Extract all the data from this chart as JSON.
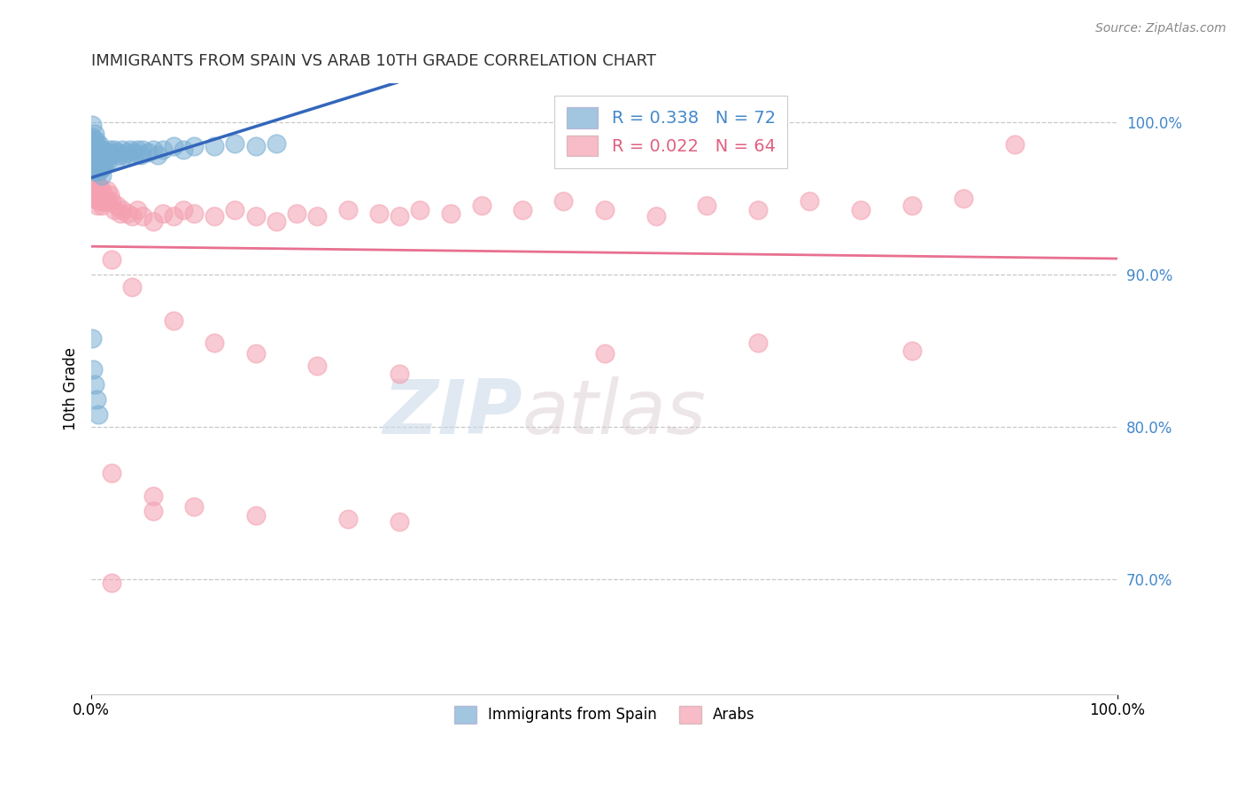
{
  "title": "IMMIGRANTS FROM SPAIN VS ARAB 10TH GRADE CORRELATION CHART",
  "source_text": "Source: ZipAtlas.com",
  "ylabel": "10th Grade",
  "xlim": [
    0.0,
    1.0
  ],
  "ylim": [
    0.625,
    1.025
  ],
  "yticks": [
    0.7,
    0.8,
    0.9,
    1.0
  ],
  "ytick_labels": [
    "70.0%",
    "80.0%",
    "90.0%",
    "100.0%"
  ],
  "xtick_labels": [
    "0.0%",
    "100.0%"
  ],
  "xticks": [
    0.0,
    1.0
  ],
  "r_spain": 0.338,
  "n_spain": 72,
  "r_arab": 0.022,
  "n_arab": 64,
  "blue_color": "#7BAFD4",
  "pink_color": "#F4A0B0",
  "blue_line_color": "#3366BB",
  "pink_line_color": "#E87090",
  "legend_label_spain": "Immigrants from Spain",
  "legend_label_arab": "Arabs",
  "watermark_zip": "ZIP",
  "watermark_atlas": "atlas",
  "background_color": "#FFFFFF",
  "spain_x": [
    0.001,
    0.001,
    0.001,
    0.001,
    0.001,
    0.002,
    0.002,
    0.002,
    0.002,
    0.003,
    0.003,
    0.003,
    0.003,
    0.004,
    0.004,
    0.004,
    0.005,
    0.005,
    0.005,
    0.006,
    0.006,
    0.006,
    0.007,
    0.007,
    0.008,
    0.008,
    0.008,
    0.009,
    0.009,
    0.01,
    0.01,
    0.01,
    0.011,
    0.011,
    0.012,
    0.012,
    0.013,
    0.014,
    0.015,
    0.016,
    0.018,
    0.019,
    0.02,
    0.022,
    0.024,
    0.025,
    0.027,
    0.03,
    0.032,
    0.035,
    0.038,
    0.04,
    0.042,
    0.045,
    0.048,
    0.05,
    0.055,
    0.06,
    0.065,
    0.07,
    0.08,
    0.09,
    0.1,
    0.12,
    0.14,
    0.16,
    0.18,
    0.001,
    0.002,
    0.003,
    0.005,
    0.007
  ],
  "spain_y": [
    0.998,
    0.99,
    0.985,
    0.978,
    0.972,
    0.988,
    0.98,
    0.975,
    0.968,
    0.992,
    0.985,
    0.978,
    0.97,
    0.988,
    0.982,
    0.975,
    0.985,
    0.978,
    0.97,
    0.982,
    0.975,
    0.968,
    0.98,
    0.972,
    0.985,
    0.978,
    0.968,
    0.98,
    0.97,
    0.982,
    0.975,
    0.965,
    0.978,
    0.97,
    0.98,
    0.972,
    0.975,
    0.978,
    0.98,
    0.975,
    0.982,
    0.978,
    0.98,
    0.982,
    0.975,
    0.98,
    0.978,
    0.982,
    0.978,
    0.98,
    0.982,
    0.978,
    0.98,
    0.982,
    0.978,
    0.982,
    0.98,
    0.982,
    0.978,
    0.982,
    0.984,
    0.982,
    0.984,
    0.984,
    0.986,
    0.984,
    0.986,
    0.858,
    0.838,
    0.828,
    0.818,
    0.808
  ],
  "arab_x": [
    0.001,
    0.001,
    0.001,
    0.001,
    0.002,
    0.002,
    0.002,
    0.003,
    0.003,
    0.004,
    0.004,
    0.005,
    0.005,
    0.006,
    0.006,
    0.007,
    0.008,
    0.008,
    0.009,
    0.01,
    0.01,
    0.011,
    0.012,
    0.013,
    0.015,
    0.016,
    0.018,
    0.02,
    0.022,
    0.025,
    0.028,
    0.03,
    0.035,
    0.04,
    0.045,
    0.05,
    0.06,
    0.07,
    0.08,
    0.09,
    0.1,
    0.12,
    0.14,
    0.16,
    0.18,
    0.2,
    0.22,
    0.25,
    0.28,
    0.3,
    0.32,
    0.35,
    0.38,
    0.42,
    0.46,
    0.5,
    0.55,
    0.6,
    0.65,
    0.7,
    0.75,
    0.8,
    0.85,
    0.9
  ],
  "arab_y": [
    0.972,
    0.965,
    0.958,
    0.95,
    0.968,
    0.96,
    0.952,
    0.962,
    0.955,
    0.958,
    0.95,
    0.96,
    0.952,
    0.955,
    0.945,
    0.952,
    0.958,
    0.948,
    0.95,
    0.955,
    0.945,
    0.948,
    0.952,
    0.948,
    0.955,
    0.948,
    0.952,
    0.948,
    0.942,
    0.945,
    0.94,
    0.942,
    0.94,
    0.938,
    0.942,
    0.938,
    0.935,
    0.94,
    0.938,
    0.942,
    0.94,
    0.938,
    0.942,
    0.938,
    0.935,
    0.94,
    0.938,
    0.942,
    0.94,
    0.938,
    0.942,
    0.94,
    0.945,
    0.942,
    0.948,
    0.942,
    0.938,
    0.945,
    0.942,
    0.948,
    0.942,
    0.945,
    0.95,
    0.985
  ],
  "arab_extra_x": [
    0.02,
    0.04,
    0.08,
    0.12,
    0.16,
    0.22,
    0.3,
    0.5,
    0.65,
    0.8,
    0.02,
    0.06,
    0.1,
    0.16,
    0.25,
    0.3,
    0.02,
    0.06
  ],
  "arab_extra_y": [
    0.91,
    0.892,
    0.87,
    0.855,
    0.848,
    0.84,
    0.835,
    0.848,
    0.855,
    0.85,
    0.77,
    0.755,
    0.748,
    0.742,
    0.74,
    0.738,
    0.698,
    0.745
  ]
}
